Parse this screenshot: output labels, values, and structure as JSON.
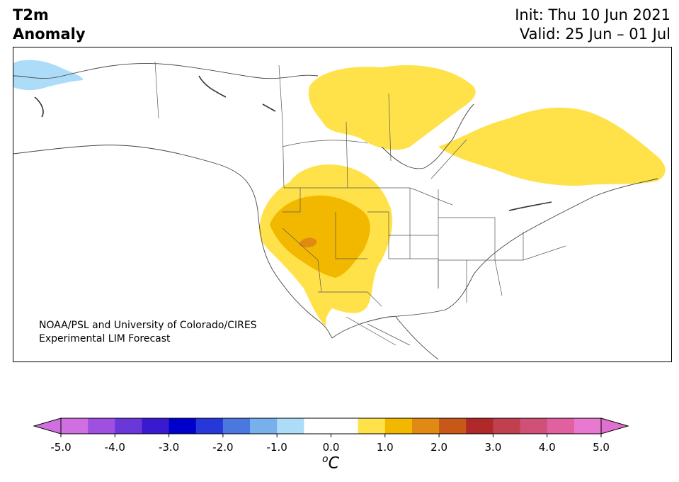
{
  "header": {
    "title_line1": "T2m",
    "title_line2": "Anomaly",
    "init": "Init: Thu 10 Jun 2021",
    "valid": "Valid: 25 Jun – 01 Jul"
  },
  "credit": {
    "line1": "NOAA/PSL and University of Colorado/CIRES",
    "line2": "Experimental LIM Forecast"
  },
  "colorbar": {
    "unit_base": "C",
    "unit_super": "o",
    "tick_labels": [
      "-5.0",
      "-4.0",
      "-3.0",
      "-2.0",
      "-1.0",
      "0.0",
      "1.0",
      "2.0",
      "3.0",
      "4.0",
      "5.0"
    ],
    "colors": [
      "#d070e0",
      "#a050e0",
      "#6a38d8",
      "#3a1ad0",
      "#0000cc",
      "#2638d8",
      "#4a78e0",
      "#78b0ec",
      "#acdcf8",
      "#ffffff",
      "#ffffff",
      "#ffe24a",
      "#f2b800",
      "#e08a14",
      "#c85818",
      "#b02828",
      "#c04050",
      "#d05078",
      "#e060a0",
      "#e878d0"
    ],
    "below_color": "#d070e0",
    "above_color": "#e070d0"
  },
  "map": {
    "colors": {
      "land_outline": "#444444",
      "light_blue": "#acdcf8",
      "yellow": "#ffe24a",
      "gold": "#f2b800",
      "orange": "#e08a14"
    }
  }
}
